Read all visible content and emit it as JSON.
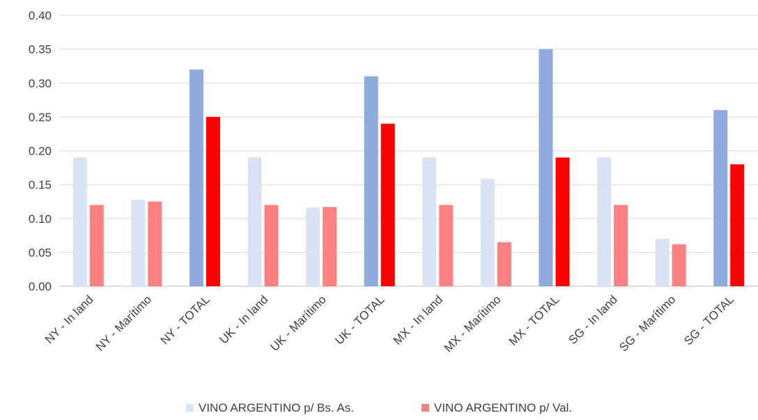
{
  "chart_data": {
    "type": "bar",
    "title": "",
    "xlabel": "",
    "ylabel": "",
    "ylim": [
      0,
      0.4
    ],
    "yticks": [
      "0.00",
      "0.05",
      "0.10",
      "0.15",
      "0.20",
      "0.25",
      "0.30",
      "0.35",
      "0.40"
    ],
    "grid": true,
    "legend_position": "bottom",
    "categories": [
      "NY - In land",
      "NY - Marítimo",
      "NY - TOTAL",
      "UK - In land",
      "UK - Marítimo",
      "UK - TOTAL",
      "MX - In land",
      "MX - Marítimo",
      "MX - TOTAL",
      "SG - In land",
      "SG - Marítimo",
      "SG - TOTAL"
    ],
    "series": [
      {
        "name": "VINO ARGENTINO p/ Bs. As.",
        "values": [
          0.19,
          0.128,
          0.32,
          0.19,
          0.116,
          0.31,
          0.19,
          0.159,
          0.35,
          0.19,
          0.07,
          0.26
        ],
        "color": "#dae3f3",
        "total_color": "#8faadc"
      },
      {
        "name": "VINO ARGENTINO p/ Val.",
        "values": [
          0.12,
          0.125,
          0.25,
          0.12,
          0.117,
          0.24,
          0.12,
          0.065,
          0.19,
          0.12,
          0.062,
          0.18
        ],
        "color": "#ff8080",
        "total_color": "#ff0000"
      }
    ]
  }
}
